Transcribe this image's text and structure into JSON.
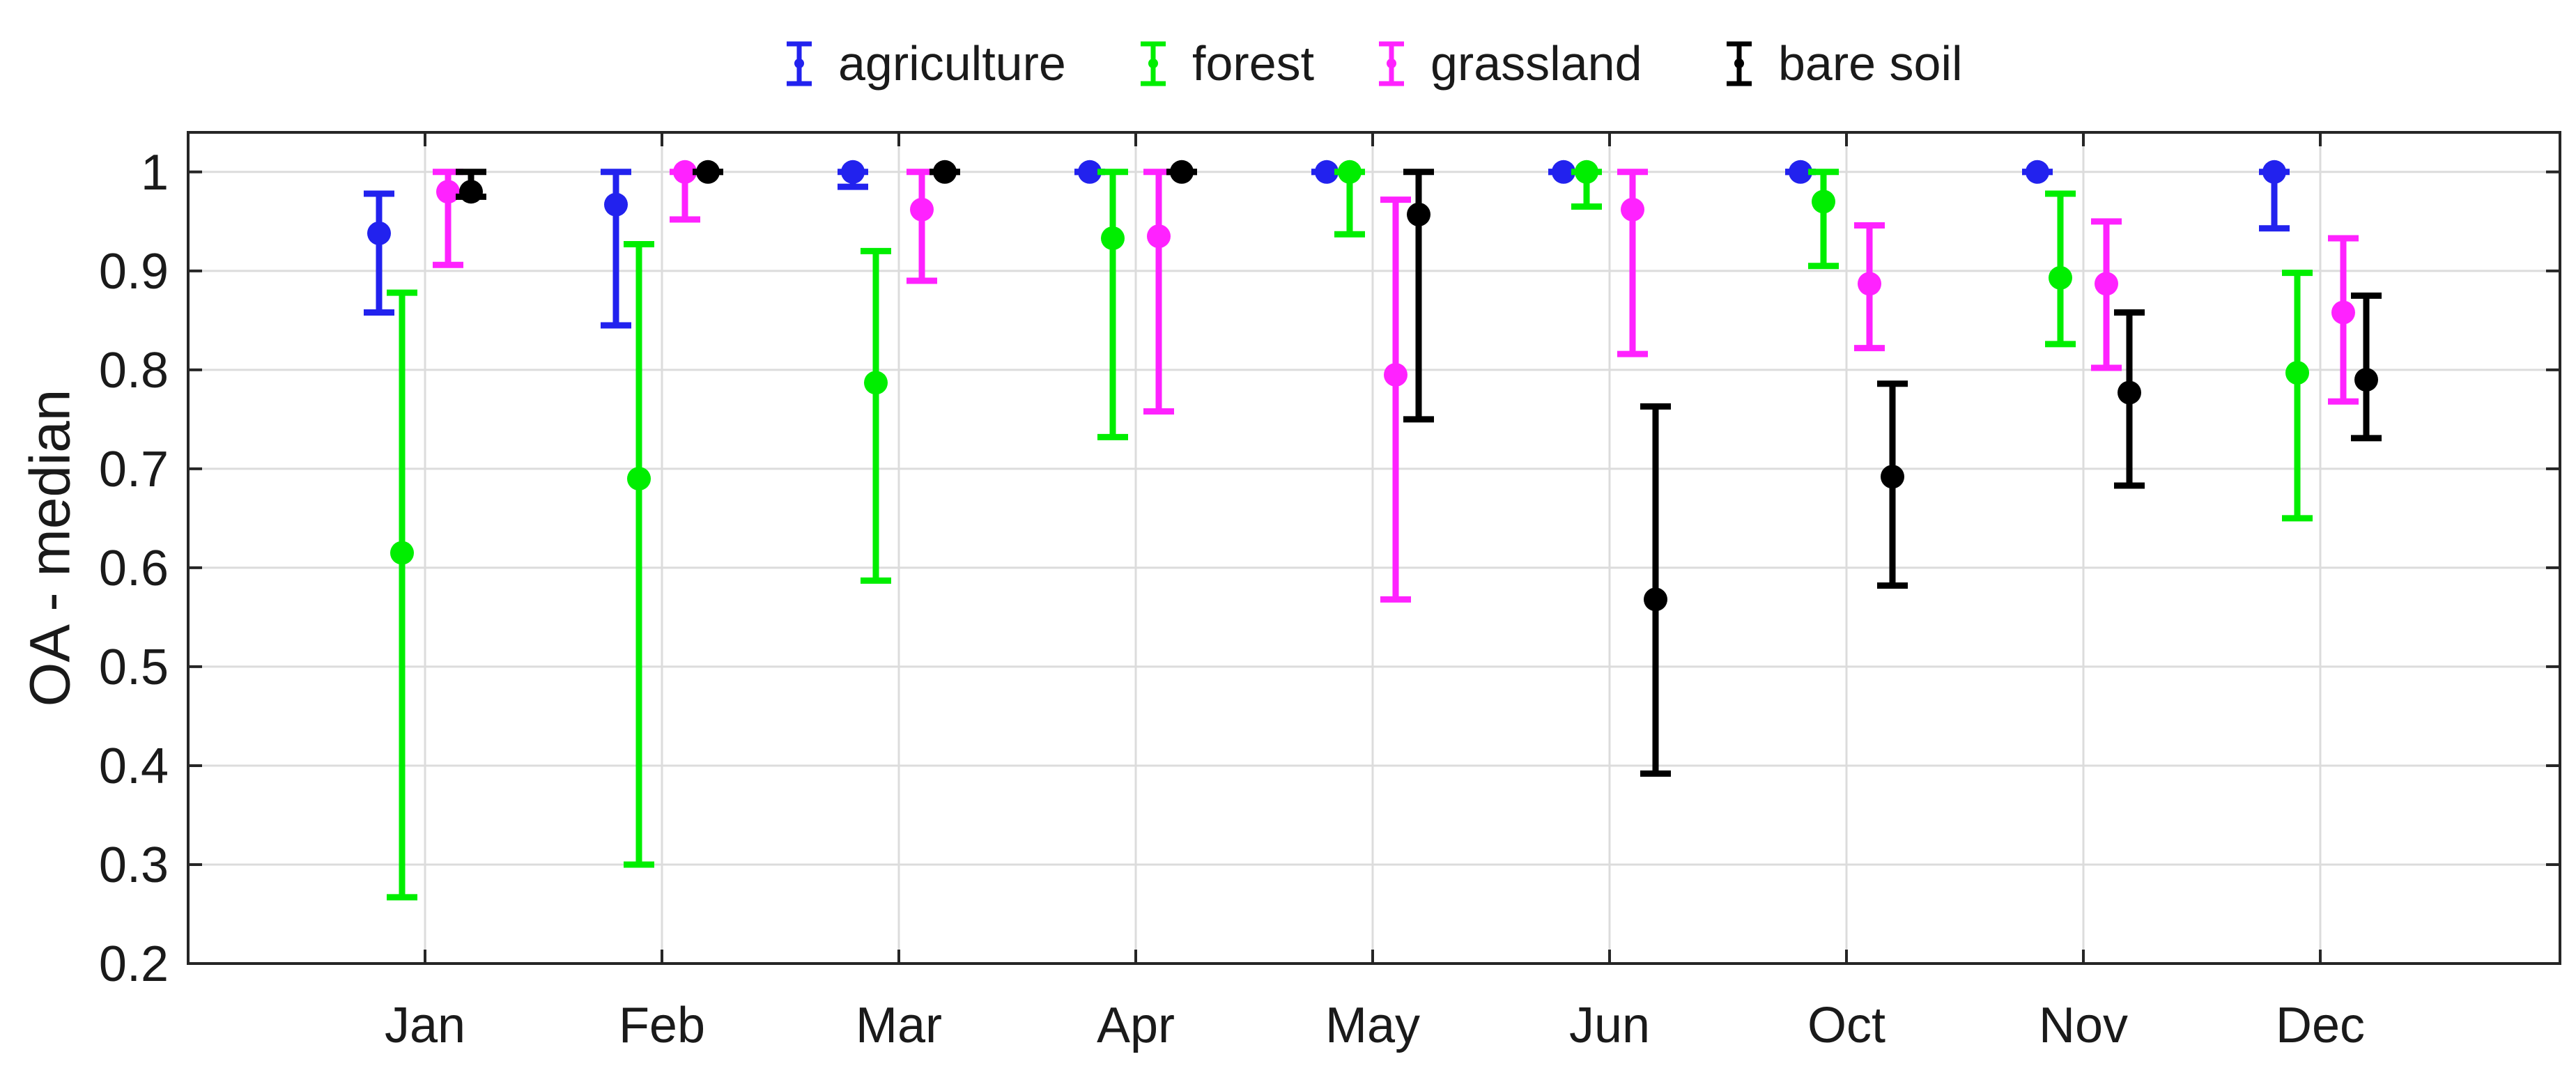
{
  "chart_data": {
    "type": "errorbar",
    "xlabel": "",
    "ylabel": "OA - median",
    "ylim": [
      0.2,
      1.04
    ],
    "yticks": [
      0.2,
      0.3,
      0.4,
      0.5,
      0.6,
      0.7,
      0.8,
      0.9,
      1.0
    ],
    "ytick_labels": [
      "0.2",
      "0.3",
      "0.4",
      "0.5",
      "0.6",
      "0.7",
      "0.8",
      "0.9",
      "1"
    ],
    "categories": [
      "Jan",
      "Feb",
      "Mar",
      "Apr",
      "May",
      "Jun",
      "Oct",
      "Nov",
      "Dec"
    ],
    "grid": true,
    "legend_position": "top-center",
    "series": [
      {
        "name": "agriculture",
        "color": "#2222ee",
        "median": [
          0.938,
          0.967,
          1.0,
          1.0,
          1.0,
          1.0,
          1.0,
          1.0,
          1.0
        ],
        "lower": [
          0.858,
          0.845,
          0.985,
          1.0,
          1.0,
          1.0,
          1.0,
          1.0,
          0.943
        ],
        "upper": [
          0.978,
          1.0,
          1.0,
          1.0,
          1.0,
          1.0,
          1.0,
          1.0,
          1.0
        ]
      },
      {
        "name": "forest",
        "color": "#00ee00",
        "median": [
          0.615,
          0.69,
          0.787,
          0.933,
          1.0,
          1.0,
          0.97,
          0.893,
          0.797
        ],
        "lower": [
          0.267,
          0.3,
          0.587,
          0.732,
          0.937,
          0.965,
          0.905,
          0.826,
          0.65
        ],
        "upper": [
          0.878,
          0.927,
          0.92,
          1.0,
          1.0,
          1.0,
          1.0,
          0.978,
          0.898
        ]
      },
      {
        "name": "grassland",
        "color": "#ff22ff",
        "median": [
          0.98,
          1.0,
          0.962,
          0.935,
          0.795,
          0.962,
          0.887,
          0.887,
          0.858
        ],
        "lower": [
          0.906,
          0.952,
          0.89,
          0.758,
          0.568,
          0.816,
          0.822,
          0.802,
          0.768
        ],
        "upper": [
          1.0,
          1.0,
          1.0,
          1.0,
          0.972,
          1.0,
          0.946,
          0.95,
          0.933
        ]
      },
      {
        "name": "bare soil",
        "color": "#000000",
        "median": [
          0.98,
          1.0,
          1.0,
          1.0,
          0.957,
          0.568,
          0.692,
          0.777,
          0.79
        ],
        "lower": [
          0.975,
          1.0,
          1.0,
          1.0,
          0.75,
          0.392,
          0.582,
          0.683,
          0.731
        ],
        "upper": [
          1.0,
          1.0,
          1.0,
          1.0,
          1.0,
          0.763,
          0.786,
          0.858,
          0.875
        ]
      }
    ]
  }
}
